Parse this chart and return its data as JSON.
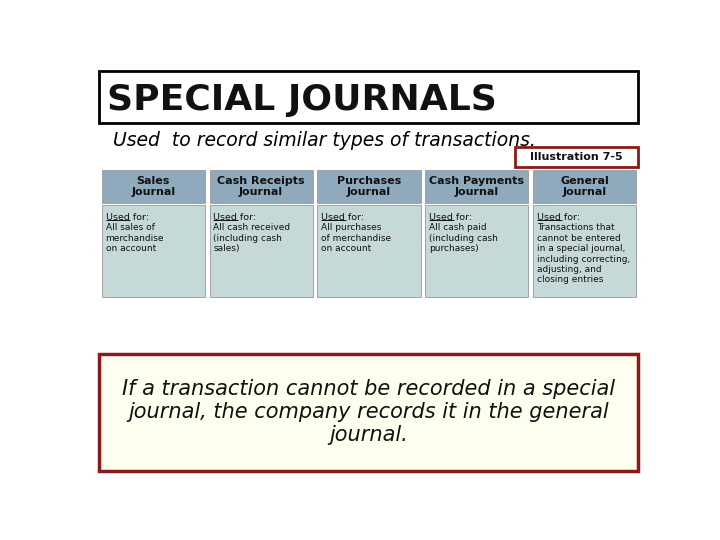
{
  "title": "SPECIAL JOURNALS",
  "subtitle": "Used  to record similar types of transactions.",
  "illustration": "Illustration 7-5",
  "bg_color": "#ffffff",
  "title_box_color": "#ffffff",
  "title_border_color": "#000000",
  "subtitle_color": "#000000",
  "header_bg": "#8faabc",
  "body_bg": "#c6d9d9",
  "illus_border": "#8B1A1A",
  "illus_bg": "#ffffff",
  "bottom_box_bg": "#fffff0",
  "bottom_box_border": "#8B1A1A",
  "journals": [
    {
      "header": "Sales\nJournal",
      "used_for": "All sales of\nmerchandise\non account"
    },
    {
      "header": "Cash Receipts\nJournal",
      "used_for": "All cash received\n(including cash\nsales)"
    },
    {
      "header": "Purchases\nJournal",
      "used_for": "All purchases\nof merchandise\non account"
    },
    {
      "header": "Cash Payments\nJournal",
      "used_for": "All cash paid\n(including cash\npurchases)"
    },
    {
      "header": "General\nJournal",
      "used_for": "Transactions that\ncannot be entered\nin a special journal,\nincluding correcting,\nadjusting, and\nclosing entries"
    }
  ],
  "bottom_text": "If a transaction cannot be recorded in a special\njournal, the company records it in the general\njournal."
}
